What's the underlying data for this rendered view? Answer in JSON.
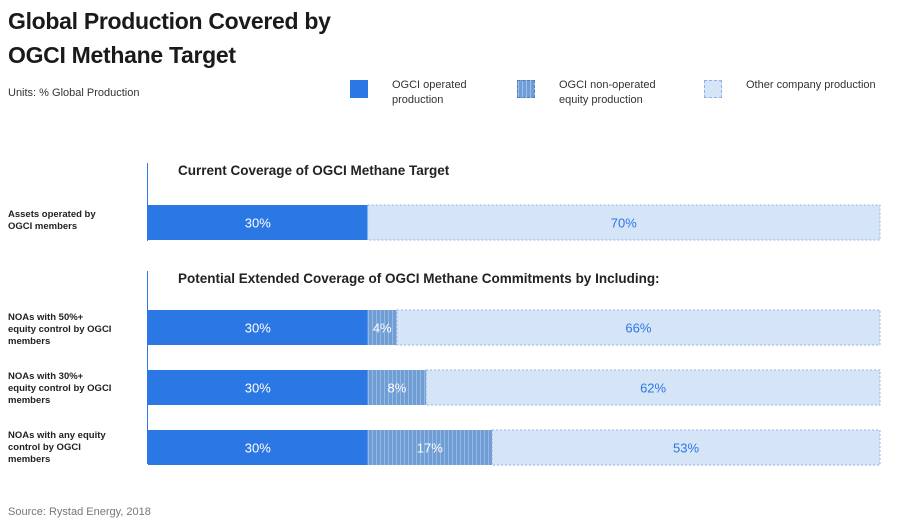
{
  "title_line1": "Global Production Covered by",
  "title_line2": "OGCI Methane Target",
  "units": "Units: % Global Production",
  "legend": [
    {
      "label_line1": "OGCI operated",
      "label_line2": "production",
      "color": "#2b77e3"
    },
    {
      "label_line1": "OGCI non-operated",
      "label_line2": "equity production",
      "color": "#6f9dd6"
    },
    {
      "label_line1": "Other company production",
      "label_line2": "",
      "color": "#d6e4f8"
    }
  ],
  "section1_heading": "Current Coverage of OGCI Methane Target",
  "section2_heading": "Potential Extended Coverage of OGCI Methane Commitments by Including:",
  "rows": [
    {
      "label": [
        "Assets operated by",
        "OGCI members"
      ]
    },
    {
      "label": [
        "NOAs with 50%+",
        "equity control by OGCI",
        "members"
      ]
    },
    {
      "label": [
        "NOAs with 30%+",
        "equity control by OGCI",
        "members"
      ]
    },
    {
      "label": [
        "NOAs with any equity",
        "control by OGCI",
        "members"
      ]
    }
  ],
  "source": "Source: Rystad Energy, 2018",
  "chart_data": {
    "type": "bar",
    "orientation": "horizontal",
    "stacked": true,
    "categories": [
      "Assets operated by OGCI members",
      "NOAs with 50%+ equity control by OGCI members",
      "NOAs with 30%+ equity control by OGCI members",
      "NOAs with any equity control by OGCI members"
    ],
    "series": [
      {
        "name": "OGCI operated production",
        "values": [
          30,
          30,
          30,
          30
        ],
        "labels": [
          "30%",
          "30%",
          "30%",
          "30%"
        ],
        "color": "#2b77e3"
      },
      {
        "name": "OGCI non-operated equity production",
        "values": [
          0,
          4,
          8,
          17
        ],
        "labels": [
          "",
          "4%",
          "8%",
          "17%"
        ],
        "color": "#6f9dd6"
      },
      {
        "name": "Other company production",
        "values": [
          70,
          66,
          62,
          53
        ],
        "labels": [
          "70%",
          "66%",
          "62%",
          "53%"
        ],
        "color": "#d6e4f8"
      }
    ],
    "xlim": [
      0,
      100
    ],
    "grid": false,
    "legend_position": "top-right"
  }
}
